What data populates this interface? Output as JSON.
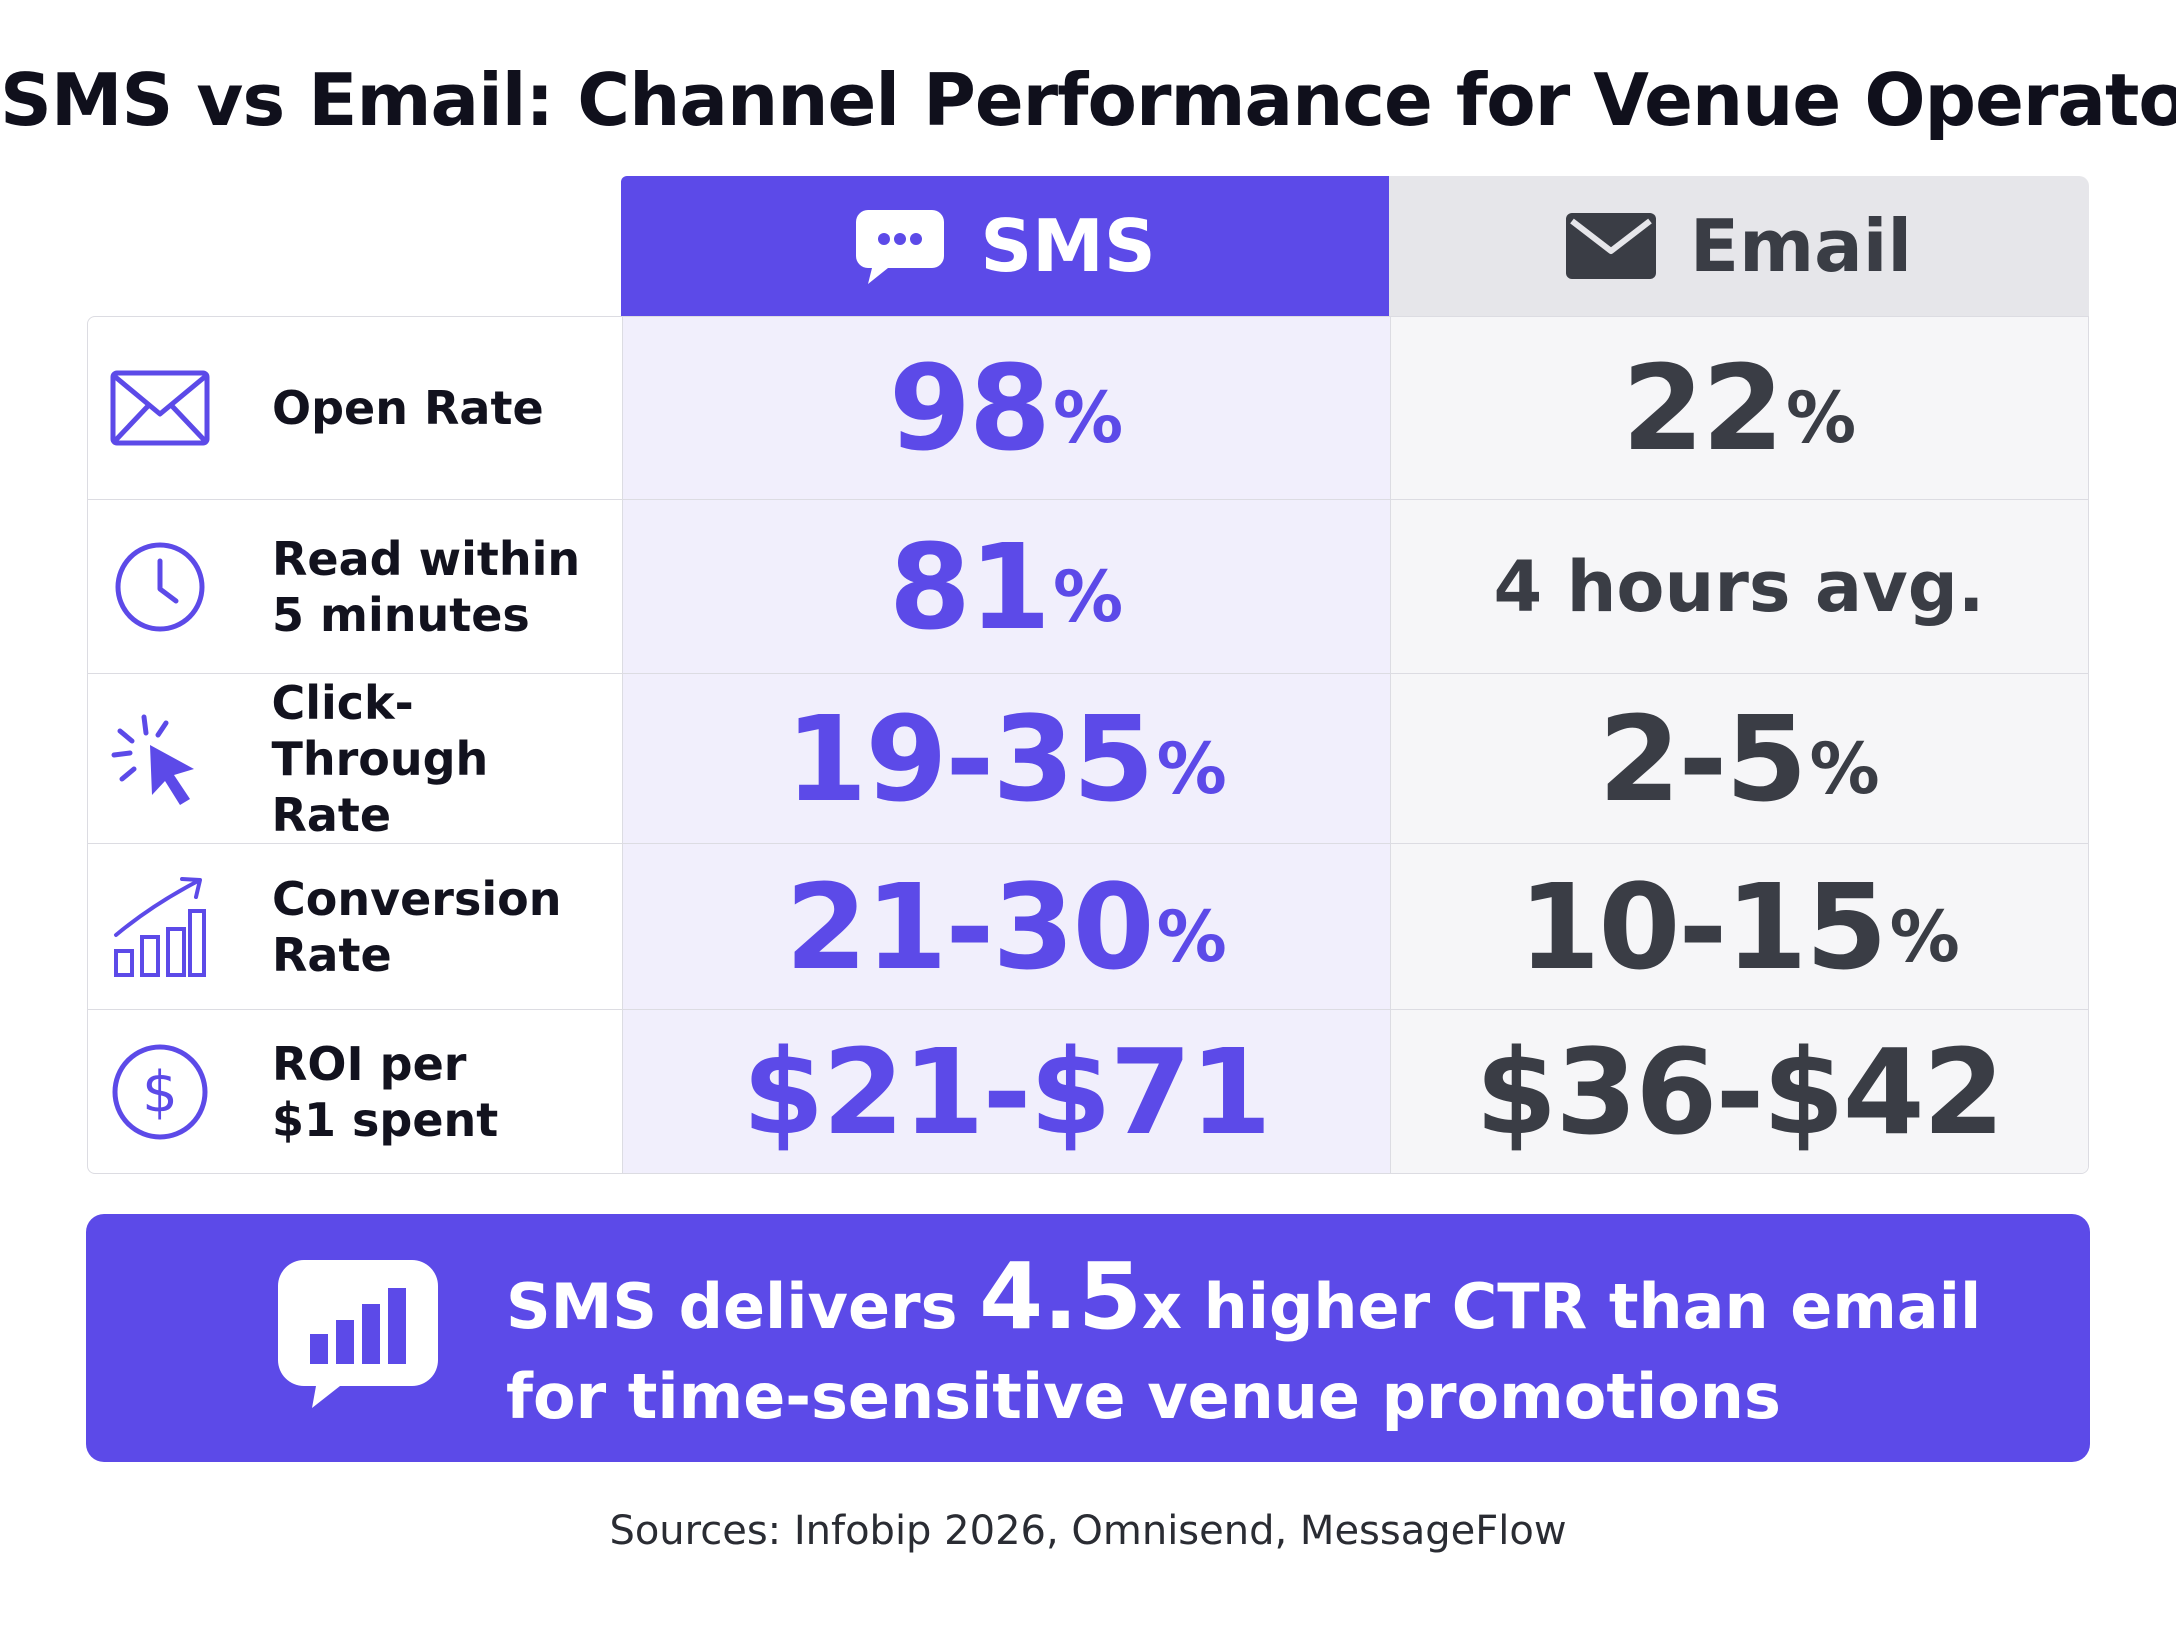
{
  "title": "SMS vs Email: Channel Performance for Venue Operators",
  "columns": {
    "sms": {
      "label": "SMS",
      "icon": "chat-bubble-icon"
    },
    "email": {
      "label": "Email",
      "icon": "envelope-icon"
    }
  },
  "rows": [
    {
      "metric_line1": "Open Rate",
      "metric_line2": "",
      "icon": "envelope-outline-icon",
      "sms_value": "98",
      "sms_unit": "%",
      "email_value": "22",
      "email_unit": "%"
    },
    {
      "metric_line1": "Read within",
      "metric_line2": "5 minutes",
      "icon": "clock-icon",
      "sms_value": "81",
      "sms_unit": "%",
      "email_text": "4 hours avg."
    },
    {
      "metric_line1": "Click-Through",
      "metric_line2": "Rate",
      "icon": "cursor-click-icon",
      "sms_value": "19-35",
      "sms_unit": "%",
      "email_value": "2-5",
      "email_unit": "%"
    },
    {
      "metric_line1": "Conversion",
      "metric_line2": "Rate",
      "icon": "growth-chart-icon",
      "sms_value": "21-30",
      "sms_unit": "%",
      "email_value": "10-15",
      "email_unit": "%"
    },
    {
      "metric_line1": "ROI per",
      "metric_line2": "$1 spent",
      "icon": "dollar-circle-icon",
      "sms_value": "$21-$71",
      "email_value": "$36-$42"
    }
  ],
  "banner": {
    "icon": "chat-bar-chart-icon",
    "line1_prefix": "SMS delivers",
    "highlight": "4.5",
    "line1_suffix": "x higher CTR than email",
    "line2": "for time-sensitive venue promotions"
  },
  "sources": "Sources:  Infobip 2026, Omnisend, MessageFlow",
  "colors": {
    "sms_accent": "#5c4ae8",
    "email_text": "#3a3d45",
    "sms_column_bg": "#f1effc",
    "email_header_bg": "#e6e6ea"
  }
}
